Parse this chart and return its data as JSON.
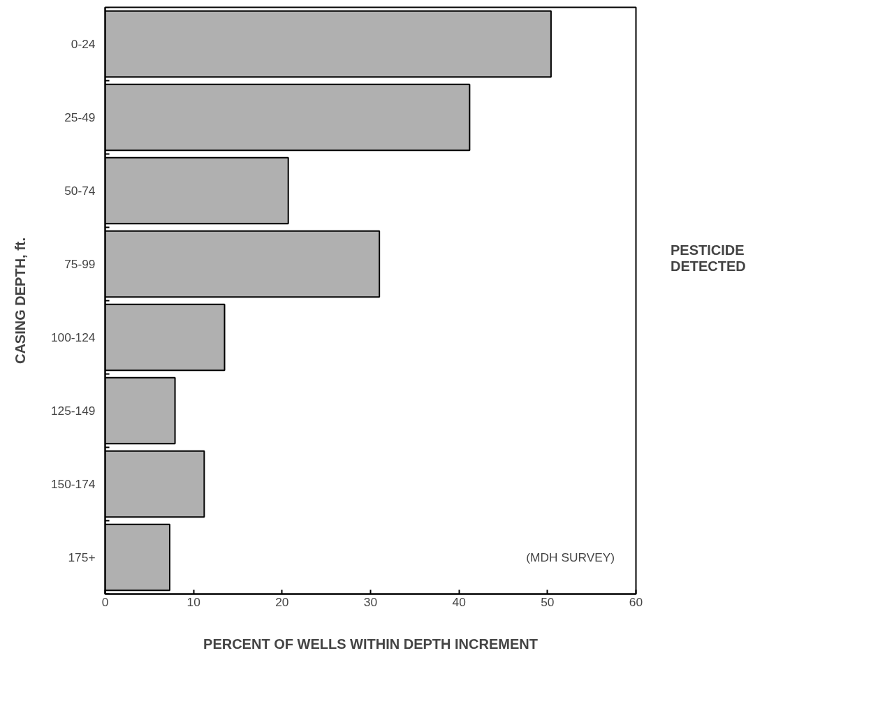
{
  "chart_data": {
    "type": "bar",
    "orientation": "horizontal",
    "xlabel": "PERCENT OF WELLS WITHIN DEPTH INCREMENT",
    "ylabel": "CASING DEPTH, ft.",
    "categories": [
      "0-24",
      "25-49",
      "50-74",
      "75-99",
      "100-124",
      "125-149",
      "150-174",
      "175+"
    ],
    "series": [
      {
        "name": "PESTICIDE\nDETECTED",
        "color": "#b0b0b0",
        "values": [
          50.4,
          41.2,
          20.7,
          31.0,
          13.5,
          7.9,
          11.2,
          7.3
        ]
      }
    ],
    "xlim": [
      0,
      60
    ],
    "xticks": [
      0,
      10,
      20,
      30,
      40,
      50,
      60
    ],
    "grid": false,
    "legend": "right",
    "annotations": [
      "(MDH SURVEY)"
    ]
  }
}
